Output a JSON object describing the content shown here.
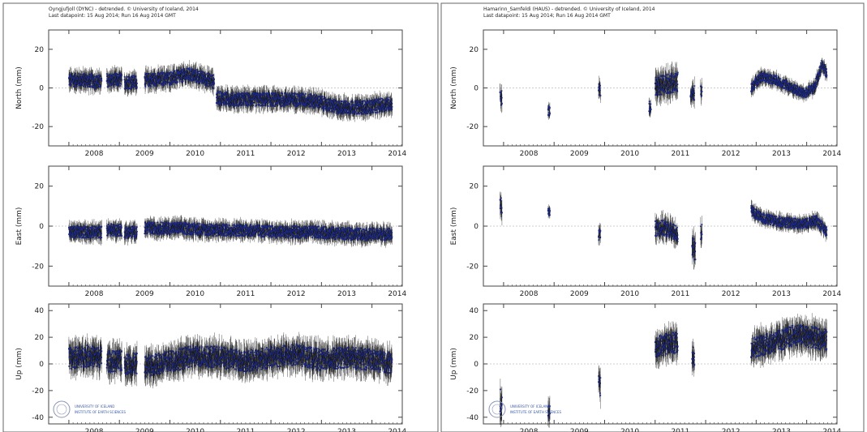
{
  "colors": {
    "points": "#1c2a8c",
    "errorbars": "#111111",
    "frame": "#444444",
    "logo": "#3a5aa8"
  },
  "figures": [
    {
      "title": "Oyngjufjoll (DYNC) - detrended. © University of Iceland, 2014",
      "subtitle": "Last datapoint: 15 Aug 2014; Run 16 Aug 2014 GMT",
      "logo": {
        "line1": "UNIVERSITY OF ICELAND",
        "line2": "INSTITUTE OF EARTH SCIENCES"
      }
    },
    {
      "title": "Hamarinn_Samfeldi (HAUS) - detrended. © University of Iceland, 2014",
      "subtitle": "Last datapoint: 15 Aug 2014; Run 16 Aug 2014 GMT",
      "logo": {
        "line1": "UNIVERSITY OF ICELAND",
        "line2": "INSTITUTE OF EARTH SCIENCES"
      }
    }
  ],
  "chart_data": [
    {
      "type": "scatter",
      "station": "DYNC",
      "component": "North",
      "ylabel": "North (mm)",
      "xlim": [
        2007.6,
        2014.6
      ],
      "ylim": [
        -30,
        30
      ],
      "yticks": [
        20,
        0,
        -20
      ],
      "xticks": [
        "2008",
        "2009",
        "2010",
        "2011",
        "2012",
        "2013",
        "2014"
      ],
      "segments": [
        {
          "x": [
            2008.0,
            2008.35,
            2008.65
          ],
          "y": [
            4,
            4,
            3
          ],
          "spread": 3.5
        },
        {
          "x": [
            2008.75,
            2009.05
          ],
          "y": [
            4,
            4
          ],
          "spread": 3.5
        },
        {
          "x": [
            2009.1,
            2009.35
          ],
          "y": [
            3,
            3
          ],
          "spread": 3.5
        },
        {
          "x": [
            2009.5,
            2010.0,
            2010.4,
            2010.8,
            2010.88
          ],
          "y": [
            4,
            5,
            7,
            4,
            3
          ],
          "spread": 3.5
        },
        {
          "x": [
            2010.92,
            2011.3,
            2012.0,
            2012.6,
            2012.9,
            2013.3,
            2013.9,
            2014.4
          ],
          "y": [
            -5,
            -6,
            -6,
            -6,
            -7,
            -10,
            -10,
            -8
          ],
          "spread": 3.5
        }
      ]
    },
    {
      "type": "scatter",
      "station": "DYNC",
      "component": "East",
      "ylabel": "East (mm)",
      "xlim": [
        2007.6,
        2014.6
      ],
      "ylim": [
        -30,
        30
      ],
      "yticks": [
        20,
        0,
        -20
      ],
      "xticks": [
        "2008",
        "2009",
        "2010",
        "2011",
        "2012",
        "2013",
        "2014"
      ],
      "segments": [
        {
          "x": [
            2008.0,
            2008.65
          ],
          "y": [
            -3,
            -3
          ],
          "spread": 3
        },
        {
          "x": [
            2008.75,
            2009.05
          ],
          "y": [
            -2,
            -2
          ],
          "spread": 3
        },
        {
          "x": [
            2009.1,
            2009.35
          ],
          "y": [
            -3,
            -3
          ],
          "spread": 3
        },
        {
          "x": [
            2009.5,
            2010.2,
            2010.9,
            2011.5,
            2012.2,
            2012.9,
            2013.6,
            2014.4
          ],
          "y": [
            -1,
            -1,
            -2,
            -2,
            -3,
            -3,
            -4,
            -4
          ],
          "spread": 3
        }
      ]
    },
    {
      "type": "scatter",
      "station": "DYNC",
      "component": "Up",
      "ylabel": "Up (mm)",
      "xlim": [
        2007.6,
        2014.6
      ],
      "ylim": [
        -45,
        45
      ],
      "yticks": [
        40,
        20,
        0,
        -20,
        -40
      ],
      "xticks": [
        "2008",
        "2009",
        "2010",
        "2011",
        "2012",
        "2013",
        "2014"
      ],
      "segments": [
        {
          "x": [
            2008.0,
            2008.35,
            2008.65
          ],
          "y": [
            4,
            6,
            5
          ],
          "spread": 8
        },
        {
          "x": [
            2008.75,
            2009.05
          ],
          "y": [
            2,
            2
          ],
          "spread": 8
        },
        {
          "x": [
            2009.1,
            2009.35
          ],
          "y": [
            0,
            0
          ],
          "spread": 8
        },
        {
          "x": [
            2009.5,
            2010.0,
            2010.5,
            2011.0,
            2011.5,
            2012.0,
            2012.5,
            2013.0,
            2013.5,
            2014.0,
            2014.4
          ],
          "y": [
            -2,
            2,
            6,
            5,
            2,
            5,
            7,
            3,
            5,
            3,
            0
          ],
          "spread": 8
        }
      ]
    },
    {
      "type": "scatter",
      "station": "HAUS",
      "component": "North",
      "ylabel": "North (mm)",
      "xlim": [
        2007.6,
        2014.6
      ],
      "ylim": [
        -30,
        30
      ],
      "yticks": [
        20,
        0,
        -20
      ],
      "xticks": [
        "2008",
        "2009",
        "2010",
        "2011",
        "2012",
        "2013",
        "2014"
      ],
      "segments": [
        {
          "x": [
            2007.93,
            2007.97
          ],
          "y": [
            -5,
            -5
          ],
          "spread": 4
        },
        {
          "x": [
            2008.88,
            2008.92
          ],
          "y": [
            -12,
            -12
          ],
          "spread": 2.5
        },
        {
          "x": [
            2009.88,
            2009.92
          ],
          "y": [
            -1,
            -1
          ],
          "spread": 3.5
        },
        {
          "x": [
            2010.88,
            2010.92
          ],
          "y": [
            -10,
            -10
          ],
          "spread": 3
        },
        {
          "x": [
            2011.0,
            2011.2,
            2011.45
          ],
          "y": [
            1,
            2,
            3
          ],
          "spread": 5
        },
        {
          "x": [
            2011.7,
            2011.78
          ],
          "y": [
            -3,
            -3
          ],
          "spread": 4
        },
        {
          "x": [
            2011.9,
            2011.93
          ],
          "y": [
            -2,
            -2
          ],
          "spread": 4
        },
        {
          "x": [
            2012.9,
            2013.1,
            2013.4,
            2013.7,
            2013.95,
            2014.15,
            2014.3,
            2014.4
          ],
          "y": [
            0,
            6,
            4,
            0,
            -3,
            0,
            12,
            7
          ],
          "spread": 2.5
        }
      ]
    },
    {
      "type": "scatter",
      "station": "HAUS",
      "component": "East",
      "ylabel": "East (mm)",
      "xlim": [
        2007.6,
        2014.6
      ],
      "ylim": [
        -30,
        30
      ],
      "yticks": [
        20,
        0,
        -20
      ],
      "xticks": [
        "2008",
        "2009",
        "2010",
        "2011",
        "2012",
        "2013",
        "2014"
      ],
      "segments": [
        {
          "x": [
            2007.93,
            2007.97
          ],
          "y": [
            10,
            10
          ],
          "spread": 5
        },
        {
          "x": [
            2008.88,
            2008.92
          ],
          "y": [
            7,
            7
          ],
          "spread": 2
        },
        {
          "x": [
            2009.88,
            2009.92
          ],
          "y": [
            -4,
            -4
          ],
          "spread": 3
        },
        {
          "x": [
            2011.0,
            2011.2,
            2011.45
          ],
          "y": [
            -1,
            -1,
            -4
          ],
          "spread": 4
        },
        {
          "x": [
            2011.73,
            2011.8
          ],
          "y": [
            -10,
            -13
          ],
          "spread": 5
        },
        {
          "x": [
            2011.9,
            2011.93
          ],
          "y": [
            -3,
            -3
          ],
          "spread": 4
        },
        {
          "x": [
            2012.9,
            2013.1,
            2013.5,
            2013.95,
            2014.2,
            2014.4
          ],
          "y": [
            8,
            4,
            2,
            1,
            3,
            -3
          ],
          "spread": 2.5
        }
      ]
    },
    {
      "type": "scatter",
      "station": "HAUS",
      "component": "Up",
      "ylabel": "Up (mm)",
      "xlim": [
        2007.6,
        2014.6
      ],
      "ylim": [
        -45,
        45
      ],
      "yticks": [
        40,
        20,
        0,
        -20,
        -40
      ],
      "xticks": [
        "2008",
        "2009",
        "2010",
        "2011",
        "2012",
        "2013",
        "2014"
      ],
      "segments": [
        {
          "x": [
            2007.93,
            2007.97
          ],
          "y": [
            -28,
            -28
          ],
          "spread": 10
        },
        {
          "x": [
            2008.88,
            2008.92
          ],
          "y": [
            -36,
            -36
          ],
          "spread": 6
        },
        {
          "x": [
            2009.88,
            2009.92
          ],
          "y": [
            -16,
            -16
          ],
          "spread": 8
        },
        {
          "x": [
            2011.0,
            2011.2,
            2011.45
          ],
          "y": [
            12,
            15,
            16
          ],
          "spread": 8
        },
        {
          "x": [
            2011.73,
            2011.78
          ],
          "y": [
            6,
            6
          ],
          "spread": 8
        },
        {
          "x": [
            2012.9,
            2013.2,
            2013.5,
            2013.8,
            2014.1,
            2014.4
          ],
          "y": [
            12,
            15,
            18,
            22,
            20,
            18
          ],
          "spread": 8
        }
      ]
    }
  ]
}
